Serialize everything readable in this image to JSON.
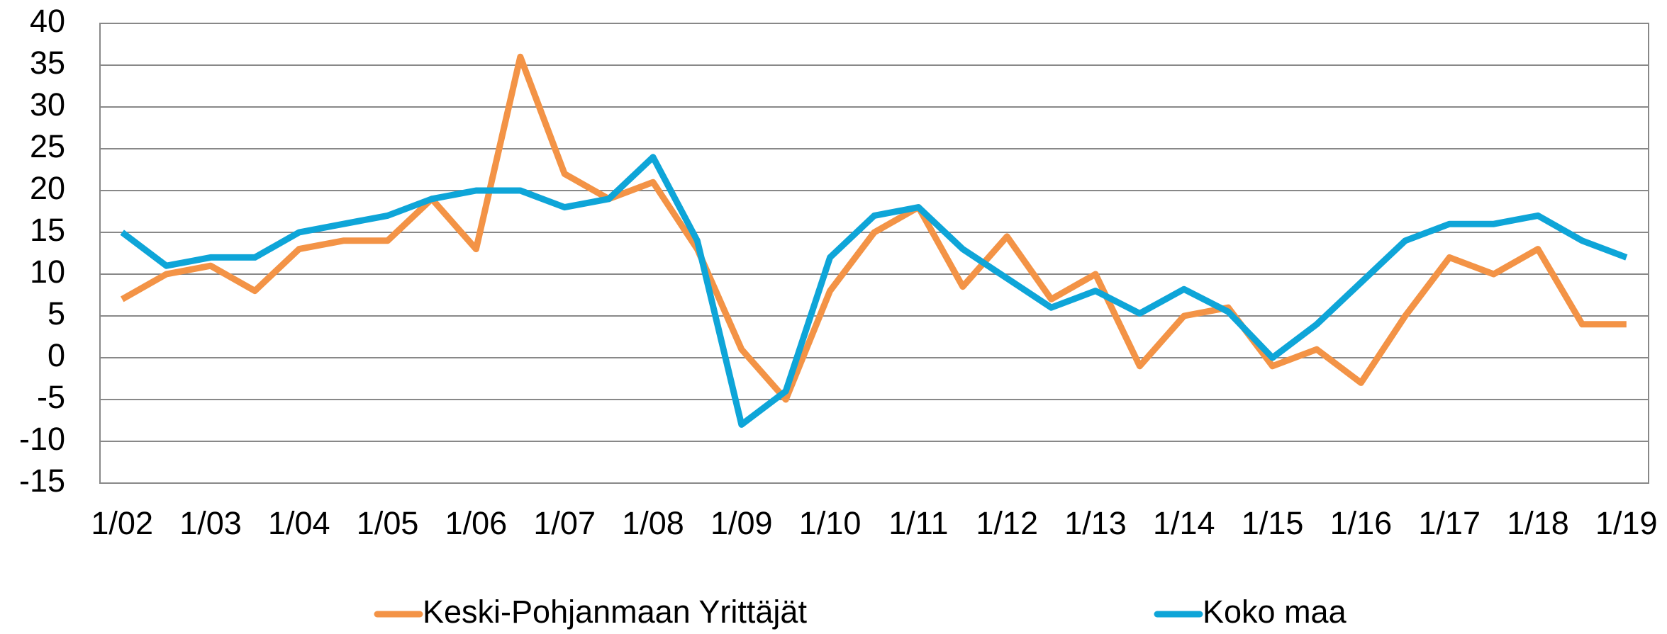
{
  "chart_data": {
    "type": "line",
    "categories": [
      "1/02",
      null,
      "1/03",
      null,
      "1/04",
      null,
      "1/05",
      null,
      "1/06",
      null,
      "1/07",
      null,
      "1/08",
      null,
      "1/09",
      null,
      "1/10",
      null,
      "1/11",
      null,
      "1/12",
      null,
      "1/13",
      null,
      "1/14",
      null,
      "1/15",
      null,
      "1/16",
      null,
      "1/17",
      null,
      "1/18",
      null,
      "1/19"
    ],
    "series": [
      {
        "name": "Keski-Pohjanmaan Yrittäjät",
        "color": "#f39346",
        "values": [
          7,
          10,
          11,
          8,
          13,
          14,
          14,
          19,
          13,
          36,
          22,
          19,
          21,
          13,
          1,
          -5,
          8,
          15,
          18,
          8.5,
          14.5,
          7,
          10,
          -1,
          5,
          6,
          -1,
          1,
          -3,
          5,
          12,
          10,
          13,
          4,
          4
        ]
      },
      {
        "name": "Koko maa",
        "color": "#0ea5d8",
        "values": [
          15,
          11,
          12,
          12,
          15,
          16,
          17,
          19,
          20,
          20,
          18,
          19,
          24,
          14,
          -8,
          -4,
          12,
          17,
          18,
          13,
          9.5,
          6,
          8,
          5.3,
          8.2,
          5.5,
          0,
          4,
          9,
          14,
          16,
          16,
          17,
          14,
          12
        ]
      }
    ],
    "ylim": [
      -15,
      40
    ],
    "yticks": [
      -15,
      -10,
      -5,
      0,
      5,
      10,
      15,
      20,
      25,
      30,
      35,
      40
    ],
    "grid": true,
    "legend": "bottom"
  }
}
